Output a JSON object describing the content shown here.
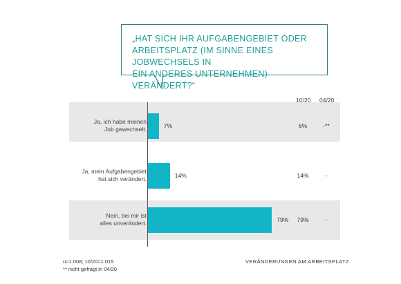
{
  "chart_data": {
    "type": "bar",
    "orientation": "horizontal",
    "title": "„HAT SICH IHR AUFGABENGEBIET ODER\nARBEITSPLATZ (IM SINNE EINES JOBWECHSELS IN\nEIN ANDERES UNTERNEHMEN) VERÄNDERT?“",
    "categories": [
      "Ja, ich habe meinen\nJob gewechselt.",
      "Ja, mein Aufgabengebiet\nhat sich verändert.",
      "Nein, bei mir ist\nalles unverändert."
    ],
    "values": [
      7,
      14,
      79
    ],
    "value_labels": [
      "7%",
      "14%",
      "79%"
    ],
    "xlim": [
      0,
      100
    ],
    "unit": "%",
    "comparison": {
      "headers": [
        "10/20",
        "04/20"
      ],
      "rows": [
        [
          "6%",
          "-**"
        ],
        [
          "14%",
          "-"
        ],
        [
          "79%",
          "-"
        ]
      ]
    }
  },
  "footnotes": [
    "n=1.008;  10/20=1.015",
    "** nicht gefragt in 04/20"
  ],
  "source_label": "VERÄNDERUNGEN  AM ARBEITSPLATZ",
  "colors": {
    "bar": "#12b5c7",
    "band": "#e8e8e8",
    "title": "#1a9e9b",
    "bubble_border": "#2a7f86"
  }
}
